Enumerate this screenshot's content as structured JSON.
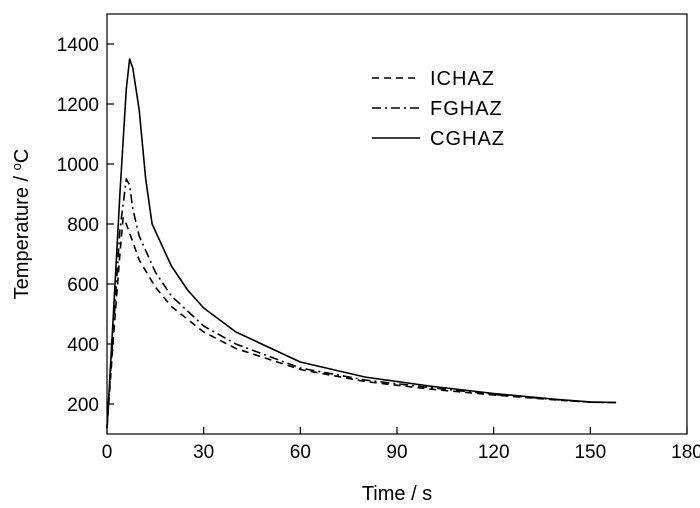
{
  "chart_data": {
    "type": "line",
    "title": "",
    "xlabel": "Time / s",
    "ylabel": "Temperature / ",
    "ylabel_unit_sup": "o",
    "ylabel_unit": "C",
    "xlim": [
      0,
      180
    ],
    "ylim": [
      100,
      1500
    ],
    "xticks": [
      0,
      30,
      60,
      90,
      120,
      150,
      180
    ],
    "xtick_labels": [
      "0",
      "30",
      "60",
      "90",
      "120",
      "150",
      "180"
    ],
    "yticks": [
      200,
      400,
      600,
      800,
      1000,
      1200,
      1400
    ],
    "ytick_labels": [
      "200",
      "400",
      "600",
      "800",
      "1000",
      "1200",
      "1400"
    ],
    "grid": false,
    "legend_position": "top-right",
    "series": [
      {
        "name": "ICHAZ",
        "style": "dashed",
        "color": "#000000",
        "x": [
          0,
          2,
          4,
          5,
          6,
          8,
          10,
          15,
          20,
          30,
          40,
          60,
          80,
          100,
          120,
          140,
          150,
          158
        ],
        "y": [
          120,
          420,
          700,
          820,
          800,
          740,
          680,
          590,
          525,
          440,
          385,
          315,
          275,
          250,
          230,
          213,
          206,
          205
        ]
      },
      {
        "name": "FGHAZ",
        "style": "dashdot",
        "color": "#000000",
        "x": [
          0,
          2,
          4,
          6,
          7,
          8,
          10,
          15,
          20,
          30,
          40,
          60,
          80,
          100,
          120,
          140,
          150,
          158
        ],
        "y": [
          120,
          450,
          780,
          950,
          930,
          850,
          760,
          640,
          560,
          460,
          400,
          320,
          280,
          255,
          232,
          214,
          206,
          205
        ]
      },
      {
        "name": "CGHAZ",
        "style": "solid",
        "color": "#000000",
        "x": [
          0,
          2,
          4,
          6,
          7,
          8,
          10,
          12,
          14,
          20,
          25,
          30,
          40,
          60,
          80,
          100,
          120,
          140,
          150,
          158
        ],
        "y": [
          120,
          500,
          900,
          1250,
          1350,
          1320,
          1180,
          950,
          800,
          660,
          580,
          520,
          440,
          340,
          290,
          260,
          235,
          215,
          207,
          205
        ]
      }
    ]
  }
}
